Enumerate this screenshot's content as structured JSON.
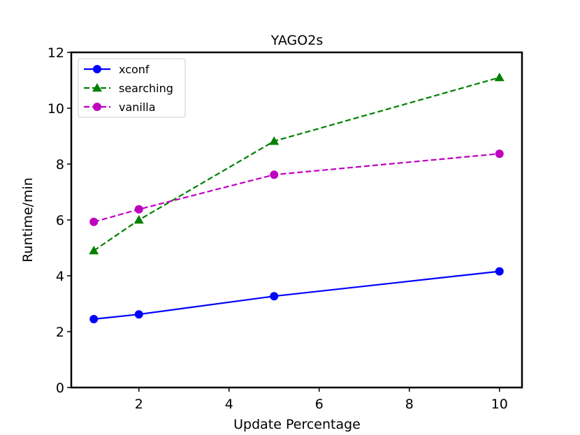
{
  "chart_data": {
    "type": "line",
    "title": "YAGO2s",
    "xlabel": "Update Percentage",
    "ylabel": "Runtime/min",
    "xlim": [
      0.5,
      10.5
    ],
    "ylim": [
      0,
      12
    ],
    "xticks": [
      2,
      4,
      6,
      8,
      10
    ],
    "yticks": [
      0,
      2,
      4,
      6,
      8,
      10,
      12
    ],
    "legend_position": "top-left",
    "x": [
      1,
      2,
      5,
      10
    ],
    "series": [
      {
        "name": "xconf",
        "values": [
          2.45,
          2.62,
          3.27,
          4.16
        ],
        "color": "#0000ff",
        "dash": "solid",
        "marker": "circle"
      },
      {
        "name": "searching",
        "values": [
          4.9,
          6.0,
          8.82,
          11.1
        ],
        "color": "#008000",
        "dash": "dashed",
        "marker": "triangle"
      },
      {
        "name": "vanilla",
        "values": [
          5.93,
          6.38,
          7.62,
          8.37
        ],
        "color": "#bf00bf",
        "dash": "dashed",
        "marker": "circle"
      }
    ]
  }
}
